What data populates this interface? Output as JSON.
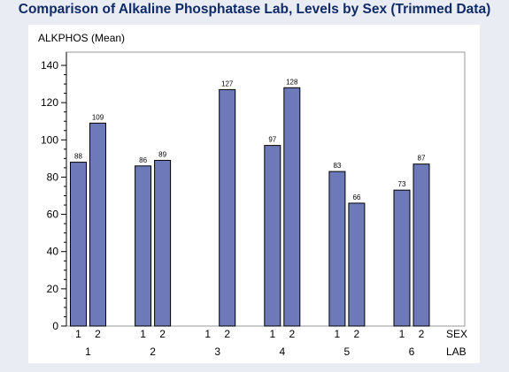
{
  "title": "Comparison of Alkaline Phosphatase Lab, Levels by Sex (Trimmed Data)",
  "chart_data": {
    "type": "bar",
    "title": "Comparison of Alkaline Phosphatase Lab, Levels by Sex (Trimmed Data)",
    "ylabel": "ALKPHOS (Mean)",
    "ylim": [
      0,
      140
    ],
    "yticks": [
      0,
      20,
      40,
      60,
      80,
      100,
      120,
      140
    ],
    "grid": false,
    "bar_color": "#6d79b8",
    "bar_edge": "#000000",
    "x_inner_label": "SEX",
    "x_outer_label": "LAB",
    "groups": [
      {
        "lab": "1",
        "bars": [
          {
            "sex": "1",
            "value": 88
          },
          {
            "sex": "2",
            "value": 109
          }
        ]
      },
      {
        "lab": "2",
        "bars": [
          {
            "sex": "1",
            "value": 86
          },
          {
            "sex": "2",
            "value": 89
          }
        ]
      },
      {
        "lab": "3",
        "bars": [
          {
            "sex": "1",
            "value": null
          },
          {
            "sex": "2",
            "value": 127
          }
        ]
      },
      {
        "lab": "4",
        "bars": [
          {
            "sex": "1",
            "value": 97
          },
          {
            "sex": "2",
            "value": 128
          }
        ]
      },
      {
        "lab": "5",
        "bars": [
          {
            "sex": "1",
            "value": 83
          },
          {
            "sex": "2",
            "value": 66
          }
        ]
      },
      {
        "lab": "6",
        "bars": [
          {
            "sex": "1",
            "value": 73
          },
          {
            "sex": "2",
            "value": 87
          }
        ]
      }
    ]
  }
}
